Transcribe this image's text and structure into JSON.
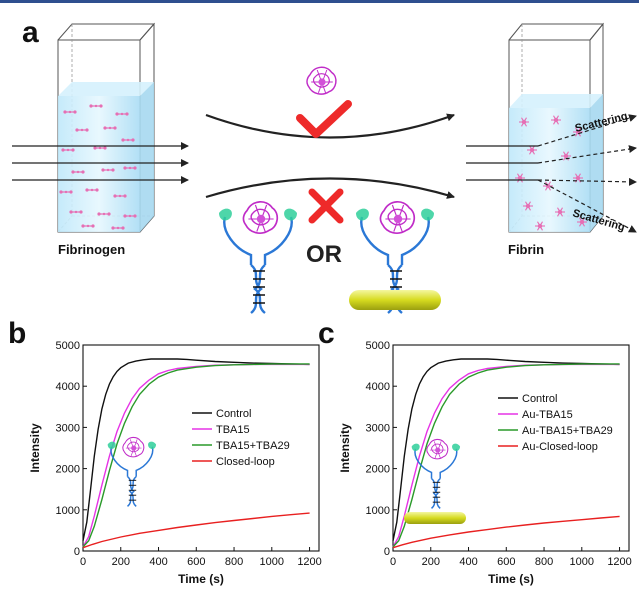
{
  "panel_a": {
    "label": "a",
    "left_label": "Fibrinogen",
    "right_label": "Fibrin",
    "or_text": "OR",
    "scatter_top": "Scattering",
    "scatter_bottom": "Scattering",
    "colors": {
      "liquid": "#c9ecfb",
      "check": "#ee2a2a",
      "cross": "#ee2a2a",
      "protein": "#c02cc8",
      "aptamer": "#2b78d6",
      "dna_rung": "#111111",
      "gold_rod": "#d8dc2a",
      "fiber": "#e66fb4"
    }
  },
  "chart_data": [
    {
      "type": "line",
      "panel_label": "b",
      "xlabel": "Time (s)",
      "ylabel": "Intensity",
      "xlim": [
        0,
        1250
      ],
      "ylim": [
        0,
        5000
      ],
      "xticks": [
        0,
        200,
        400,
        600,
        800,
        1000,
        1200
      ],
      "yticks": [
        0,
        1000,
        2000,
        3000,
        4000,
        5000
      ],
      "legend_position": "center-right",
      "inset": "aptamer-protein complex",
      "series": [
        {
          "name": "Control",
          "color": "#111111",
          "x": [
            0,
            20,
            40,
            60,
            80,
            100,
            120,
            140,
            160,
            180,
            200,
            240,
            280,
            320,
            360,
            400,
            450,
            500,
            550,
            600,
            700,
            800,
            900,
            1000,
            1100,
            1200
          ],
          "y": [
            250,
            700,
            1500,
            2300,
            2950,
            3450,
            3800,
            4050,
            4230,
            4360,
            4450,
            4560,
            4610,
            4640,
            4660,
            4660,
            4660,
            4660,
            4650,
            4630,
            4600,
            4580,
            4560,
            4550,
            4540,
            4530
          ]
        },
        {
          "name": "TBA15",
          "color": "#e633e6",
          "x": [
            0,
            30,
            60,
            100,
            140,
            180,
            220,
            260,
            300,
            350,
            400,
            450,
            500,
            600,
            700,
            800,
            900,
            1000,
            1100,
            1200
          ],
          "y": [
            100,
            350,
            850,
            1600,
            2300,
            2900,
            3350,
            3700,
            3950,
            4150,
            4300,
            4380,
            4430,
            4480,
            4510,
            4520,
            4530,
            4530,
            4530,
            4530
          ]
        },
        {
          "name": "TBA15+TBA29",
          "color": "#2a9a2a",
          "x": [
            0,
            30,
            60,
            100,
            140,
            180,
            220,
            260,
            300,
            350,
            400,
            450,
            500,
            600,
            700,
            800,
            900,
            1000,
            1100,
            1200
          ],
          "y": [
            100,
            250,
            600,
            1250,
            1950,
            2600,
            3100,
            3500,
            3800,
            4050,
            4220,
            4320,
            4390,
            4460,
            4500,
            4520,
            4530,
            4540,
            4540,
            4540
          ]
        },
        {
          "name": "Closed-loop",
          "color": "#e82020",
          "x": [
            0,
            50,
            100,
            200,
            300,
            400,
            500,
            600,
            700,
            800,
            900,
            1000,
            1100,
            1200
          ],
          "y": [
            80,
            160,
            230,
            340,
            430,
            500,
            570,
            630,
            690,
            740,
            790,
            840,
            880,
            920
          ]
        }
      ]
    },
    {
      "type": "line",
      "panel_label": "c",
      "xlabel": "Time (s)",
      "ylabel": "Intensity",
      "xlim": [
        0,
        1250
      ],
      "ylim": [
        0,
        5000
      ],
      "xticks": [
        0,
        200,
        400,
        600,
        800,
        1000,
        1200
      ],
      "yticks": [
        0,
        1000,
        2000,
        3000,
        4000,
        5000
      ],
      "legend_position": "center-right",
      "inset": "aptamer-protein complex on gold nanorod",
      "series": [
        {
          "name": "Control",
          "color": "#111111",
          "x": [
            0,
            20,
            40,
            60,
            80,
            100,
            120,
            140,
            160,
            180,
            200,
            240,
            280,
            320,
            360,
            400,
            450,
            500,
            550,
            600,
            700,
            800,
            900,
            1000,
            1100,
            1200
          ],
          "y": [
            250,
            700,
            1500,
            2300,
            2950,
            3450,
            3800,
            4050,
            4230,
            4360,
            4450,
            4560,
            4610,
            4640,
            4660,
            4660,
            4660,
            4660,
            4650,
            4630,
            4600,
            4580,
            4560,
            4550,
            4540,
            4530
          ]
        },
        {
          "name": "Au-TBA15",
          "color": "#e633e6",
          "x": [
            0,
            30,
            60,
            100,
            140,
            180,
            220,
            260,
            300,
            350,
            400,
            450,
            500,
            600,
            700,
            800,
            900,
            1000,
            1100,
            1200
          ],
          "y": [
            100,
            350,
            850,
            1600,
            2300,
            2900,
            3350,
            3700,
            3950,
            4150,
            4300,
            4380,
            4430,
            4480,
            4510,
            4520,
            4530,
            4530,
            4530,
            4530
          ]
        },
        {
          "name": "Au-TBA15+TBA29",
          "color": "#2a9a2a",
          "x": [
            0,
            30,
            60,
            100,
            140,
            180,
            220,
            260,
            300,
            350,
            400,
            450,
            500,
            600,
            700,
            800,
            900,
            1000,
            1100,
            1200
          ],
          "y": [
            100,
            250,
            600,
            1250,
            1950,
            2600,
            3100,
            3500,
            3800,
            4050,
            4220,
            4320,
            4390,
            4460,
            4500,
            4520,
            4530,
            4540,
            4540,
            4540
          ]
        },
        {
          "name": "Au-Closed-loop",
          "color": "#e82020",
          "x": [
            0,
            50,
            100,
            200,
            300,
            400,
            500,
            600,
            700,
            800,
            900,
            1000,
            1100,
            1200
          ],
          "y": [
            80,
            150,
            210,
            310,
            390,
            460,
            520,
            580,
            630,
            680,
            720,
            760,
            800,
            840
          ]
        }
      ]
    }
  ]
}
